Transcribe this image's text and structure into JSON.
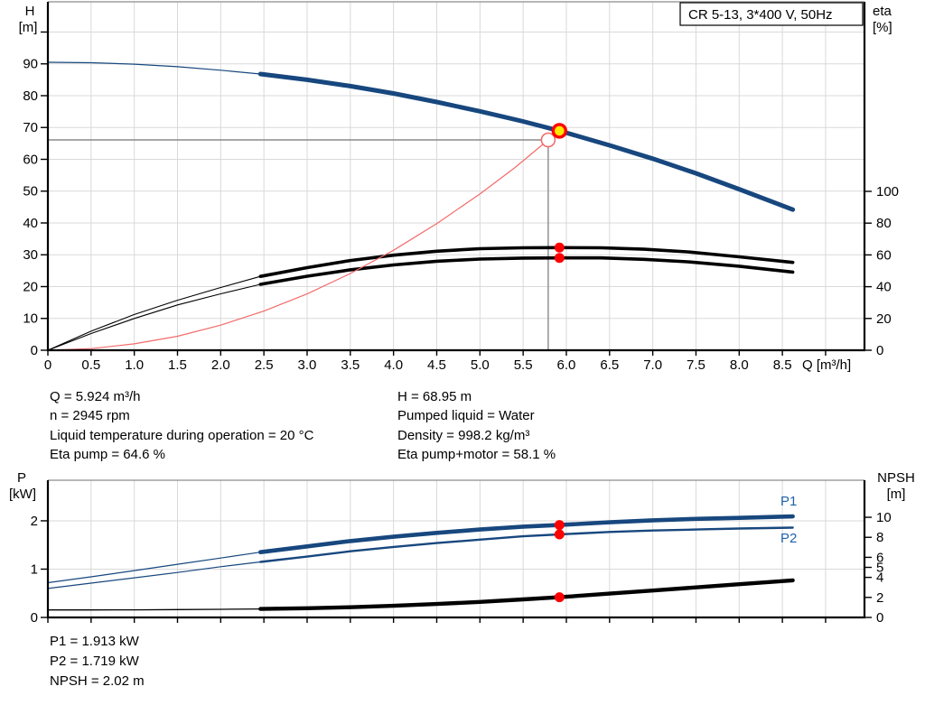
{
  "colors": {
    "curve_blue": "#17477e",
    "label_blue": "#2062a8",
    "red": "#ff0000",
    "light_red": "#f26b6b",
    "yellow": "#ffe800",
    "grid": "#d9d9d9",
    "crosshair": "#8a8a8a",
    "frame_top": "#8c8c8c",
    "black": "#000000"
  },
  "info": {
    "left": [
      "Q = 5.924 m³/h",
      "n = 2945 rpm",
      "Liquid temperature during operation = 20 °C",
      "Eta pump = 64.6 %"
    ],
    "right": [
      "H = 68.95 m",
      "Pumped liquid = Water",
      "Density = 998.2 kg/m³",
      "Eta pump+motor = 58.1 %"
    ]
  },
  "results": [
    "P1 = 1.913 kW",
    "P2 = 1.719 kW",
    "NPSH = 2.02 m"
  ],
  "chart_data": [
    {
      "id": "top",
      "type": "line",
      "title": "CR 5-13, 3*400 V, 50Hz",
      "x_axis": {
        "label": "Q [m³/h]",
        "min": 0,
        "max": 9.45,
        "grid_step": 0.5,
        "grid_max": 9.0,
        "tick_labels": [
          "0",
          "0.5",
          "1.0",
          "1.5",
          "2.0",
          "2.5",
          "3.0",
          "3.5",
          "4.0",
          "4.5",
          "5.0",
          "5.5",
          "6.0",
          "6.5",
          "7.0",
          "7.5",
          "8.0",
          "8.5"
        ]
      },
      "y_left": {
        "label": "H",
        "unit": "[m]",
        "min": 0,
        "max": 109.5,
        "tick_values": [
          0,
          10,
          20,
          30,
          40,
          50,
          60,
          70,
          80,
          90
        ],
        "ticks": [
          "0",
          "10",
          "20",
          "30",
          "40",
          "50",
          "60",
          "70",
          "80",
          "90"
        ],
        "extra_marks": [
          100
        ],
        "grid_lines": [
          10,
          20,
          30,
          40,
          50,
          60,
          70,
          80,
          90,
          100
        ]
      },
      "y_right": {
        "label": "eta",
        "unit": "[%]",
        "min": 0,
        "max": 219.3,
        "tick_values": [
          0,
          20,
          40,
          60,
          80,
          100
        ],
        "ticks": [
          "0",
          "20",
          "40",
          "60",
          "80",
          "100"
        ]
      },
      "crosshair": {
        "q": 5.79,
        "v": 66.1
      },
      "series": [
        {
          "name": "H-curve",
          "axis": "left",
          "color": "curve_blue",
          "thin_width": 1.2,
          "thick_width": 5,
          "thick_from": 2.46,
          "points": [
            [
              0,
              90.5
            ],
            [
              0.5,
              90.35
            ],
            [
              1,
              89.9
            ],
            [
              1.5,
              89.1
            ],
            [
              2,
              88.0
            ],
            [
              2.46,
              86.8
            ],
            [
              3,
              85.0
            ],
            [
              3.5,
              83.0
            ],
            [
              4,
              80.7
            ],
            [
              4.5,
              78.0
            ],
            [
              5,
              75.1
            ],
            [
              5.5,
              71.9
            ],
            [
              5.92,
              68.95
            ],
            [
              6.5,
              64.4
            ],
            [
              7,
              60.2
            ],
            [
              7.5,
              55.6
            ],
            [
              8,
              50.6
            ],
            [
              8.62,
              44.2
            ]
          ]
        },
        {
          "name": "eta-pump",
          "axis": "right",
          "color": "black",
          "thin_width": 1.1,
          "thick_width": 3.6,
          "thick_from": 2.46,
          "points": [
            [
              0,
              0
            ],
            [
              0.5,
              12
            ],
            [
              1,
              22.5
            ],
            [
              1.5,
              31.5
            ],
            [
              2,
              39.5
            ],
            [
              2.46,
              46.5
            ],
            [
              3,
              52
            ],
            [
              3.5,
              56.5
            ],
            [
              4,
              59.8
            ],
            [
              4.5,
              62.3
            ],
            [
              5,
              63.9
            ],
            [
              5.5,
              64.5
            ],
            [
              5.92,
              64.6
            ],
            [
              6.4,
              64.5
            ],
            [
              6.9,
              63.6
            ],
            [
              7.4,
              61.9
            ],
            [
              8,
              58.8
            ],
            [
              8.62,
              55.3
            ]
          ]
        },
        {
          "name": "eta-pump-motor",
          "axis": "right",
          "color": "black",
          "thin_width": 1.1,
          "thick_width": 3.6,
          "thick_from": 2.46,
          "points": [
            [
              0,
              0
            ],
            [
              0.5,
              10.5
            ],
            [
              1,
              20
            ],
            [
              1.5,
              28.5
            ],
            [
              2,
              35.5
            ],
            [
              2.46,
              41.5
            ],
            [
              3,
              46.6
            ],
            [
              3.5,
              50.6
            ],
            [
              4,
              53.7
            ],
            [
              4.5,
              56.0
            ],
            [
              5,
              57.4
            ],
            [
              5.5,
              58.0
            ],
            [
              5.92,
              58.1
            ],
            [
              6.4,
              58.1
            ],
            [
              6.9,
              57.2
            ],
            [
              7.4,
              55.7
            ],
            [
              8,
              52.9
            ],
            [
              8.62,
              49.2
            ]
          ]
        },
        {
          "name": "system-curve",
          "axis": "left",
          "color": "light_red",
          "thin_width": 1.2,
          "thick_width": 1.2,
          "thick_from": 99,
          "points": [
            [
              0,
              0
            ],
            [
              0.5,
              0.5
            ],
            [
              1,
              2
            ],
            [
              1.5,
              4.4
            ],
            [
              2,
              7.9
            ],
            [
              2.5,
              12.3
            ],
            [
              3,
              17.7
            ],
            [
              3.5,
              24.1
            ],
            [
              4,
              31.4
            ],
            [
              4.5,
              39.8
            ],
            [
              5,
              49.1
            ],
            [
              5.4,
              57.3
            ],
            [
              5.79,
              66.1
            ]
          ]
        }
      ],
      "markers": [
        {
          "name": "requested-duty-point",
          "shape": "open-circle",
          "axis": "left",
          "q": 5.79,
          "v": 66.1
        },
        {
          "name": "actual-duty-point",
          "shape": "yellow-dot",
          "axis": "left",
          "q": 5.92,
          "v": 68.95
        },
        {
          "name": "eta-pump-point",
          "shape": "red-dot",
          "axis": "right",
          "q": 5.92,
          "v": 64.6
        },
        {
          "name": "eta-pump-motor-point",
          "shape": "red-dot",
          "axis": "right",
          "q": 5.92,
          "v": 58.1
        }
      ]
    },
    {
      "id": "bottom",
      "type": "line",
      "x_axis": {
        "label": "",
        "min": 0,
        "max": 9.45,
        "grid_step": 0.5,
        "grid_max": 9.0,
        "tick_labels": []
      },
      "y_left": {
        "label": "P",
        "unit": "[kW]",
        "min": 0,
        "max": 2.84,
        "tick_values": [
          0,
          1,
          2
        ],
        "ticks": [
          "0",
          "1",
          "2"
        ],
        "extra_marks": [],
        "grid_lines": [
          1,
          2
        ]
      },
      "y_right": {
        "label": "NPSH",
        "unit": "[m]",
        "min": 0,
        "max": 13.7,
        "tick_values": [
          0,
          2,
          4,
          5,
          6,
          8,
          10
        ],
        "ticks": [
          "0",
          "2",
          "4",
          "5",
          "6",
          "8",
          "10"
        ]
      },
      "series": [
        {
          "name": "P1",
          "axis": "left",
          "color": "curve_blue",
          "thin_width": 1.2,
          "thick_width": 4.6,
          "thick_from": 2.46,
          "points": [
            [
              0,
              0.72
            ],
            [
              0.5,
              0.84
            ],
            [
              1,
              0.97
            ],
            [
              1.5,
              1.1
            ],
            [
              2,
              1.23
            ],
            [
              2.46,
              1.35
            ],
            [
              3,
              1.47
            ],
            [
              3.5,
              1.58
            ],
            [
              4,
              1.67
            ],
            [
              4.5,
              1.75
            ],
            [
              5,
              1.82
            ],
            [
              5.5,
              1.88
            ],
            [
              5.92,
              1.913
            ],
            [
              6.5,
              1.97
            ],
            [
              7,
              2.01
            ],
            [
              7.5,
              2.04
            ],
            [
              8,
              2.06
            ],
            [
              8.62,
              2.09
            ]
          ]
        },
        {
          "name": "P2",
          "axis": "left",
          "color": "curve_blue",
          "thin_width": 1.2,
          "thick_width": 2.4,
          "thick_from": 2.46,
          "points": [
            [
              0,
              0.6
            ],
            [
              0.5,
              0.71
            ],
            [
              1,
              0.82
            ],
            [
              1.5,
              0.93
            ],
            [
              2,
              1.05
            ],
            [
              2.46,
              1.15
            ],
            [
              3,
              1.26
            ],
            [
              3.5,
              1.37
            ],
            [
              4,
              1.46
            ],
            [
              4.5,
              1.54
            ],
            [
              5,
              1.61
            ],
            [
              5.5,
              1.68
            ],
            [
              5.92,
              1.719
            ],
            [
              6.5,
              1.77
            ],
            [
              7,
              1.8
            ],
            [
              7.5,
              1.82
            ],
            [
              8,
              1.84
            ],
            [
              8.62,
              1.86
            ]
          ]
        },
        {
          "name": "NPSH",
          "axis": "right",
          "color": "black",
          "thin_width": 1.3,
          "thick_width": 4.4,
          "thick_from": 2.46,
          "points": [
            [
              0,
              0.75
            ],
            [
              0.5,
              0.75
            ],
            [
              1,
              0.76
            ],
            [
              1.5,
              0.78
            ],
            [
              2,
              0.81
            ],
            [
              2.46,
              0.85
            ],
            [
              3,
              0.92
            ],
            [
              3.5,
              1.02
            ],
            [
              4,
              1.16
            ],
            [
              4.5,
              1.34
            ],
            [
              5,
              1.55
            ],
            [
              5.5,
              1.8
            ],
            [
              5.92,
              2.02
            ],
            [
              6.5,
              2.38
            ],
            [
              7,
              2.69
            ],
            [
              7.5,
              3.0
            ],
            [
              8,
              3.32
            ],
            [
              8.62,
              3.7
            ]
          ]
        }
      ],
      "markers": [
        {
          "name": "p1-point",
          "shape": "red-dot",
          "axis": "left",
          "q": 5.92,
          "v": 1.913
        },
        {
          "name": "p2-point",
          "shape": "red-dot",
          "axis": "left",
          "q": 5.92,
          "v": 1.719
        },
        {
          "name": "npsh-point",
          "shape": "red-dot",
          "axis": "right",
          "q": 5.92,
          "v": 2.02
        }
      ]
    }
  ]
}
